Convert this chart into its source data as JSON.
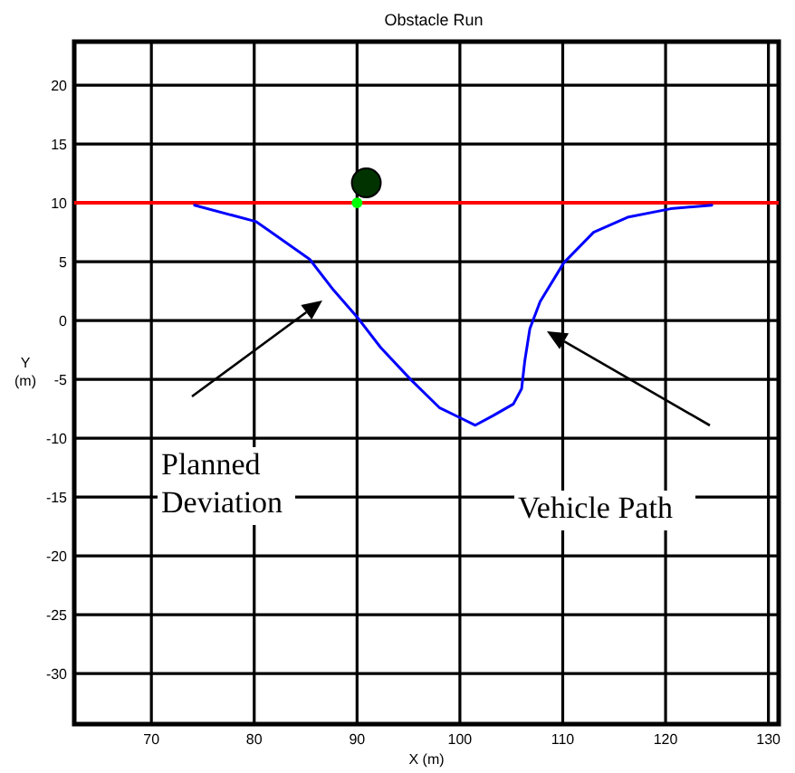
{
  "chart_data": {
    "type": "line",
    "title": "Obstacle Run",
    "xlabel": "X (m)",
    "ylabel": "Y\n(m)",
    "xlim": [
      62.5,
      131
    ],
    "ylim": [
      -34.3,
      23.7
    ],
    "xticks": [
      70,
      80,
      90,
      100,
      110,
      120,
      130
    ],
    "yticks": [
      -30,
      -25,
      -20,
      -15,
      -10,
      -5,
      0,
      5,
      10,
      15,
      20
    ],
    "grid": true,
    "line_style": "solid",
    "series": [
      {
        "color": "#0000ff",
        "x": [
          74.2,
          80.2,
          85.4,
          87.7,
          90,
          92.3,
          95.2,
          98,
          100.1,
          101.5,
          103.2,
          105.2,
          106,
          106.3,
          106.8,
          107.8,
          110.1,
          113,
          116.4,
          120.5,
          124.5
        ],
        "values": [
          9.8,
          8.4,
          5.2,
          2.6,
          0.3,
          -2.3,
          -5,
          -7.4,
          -8.3,
          -8.9,
          -8.1,
          -7.1,
          -5.8,
          -3.5,
          -0.7,
          1.6,
          4.9,
          7.5,
          8.8,
          9.5,
          9.8
        ]
      },
      {
        "type": "scatter",
        "marker": "circle",
        "color": "#003300",
        "x": [
          90.9
        ],
        "values": [
          11.7
        ]
      },
      {
        "type": "scatter",
        "marker": "circle",
        "color": "#00ff00",
        "x": [
          90
        ],
        "values": [
          10
        ]
      }
    ],
    "ref_lines": [
      {
        "axis": "y",
        "value": 10,
        "color": "#ff0000"
      }
    ],
    "annotations": [
      "Planned\nDeviation",
      "Vehicle Path"
    ]
  }
}
